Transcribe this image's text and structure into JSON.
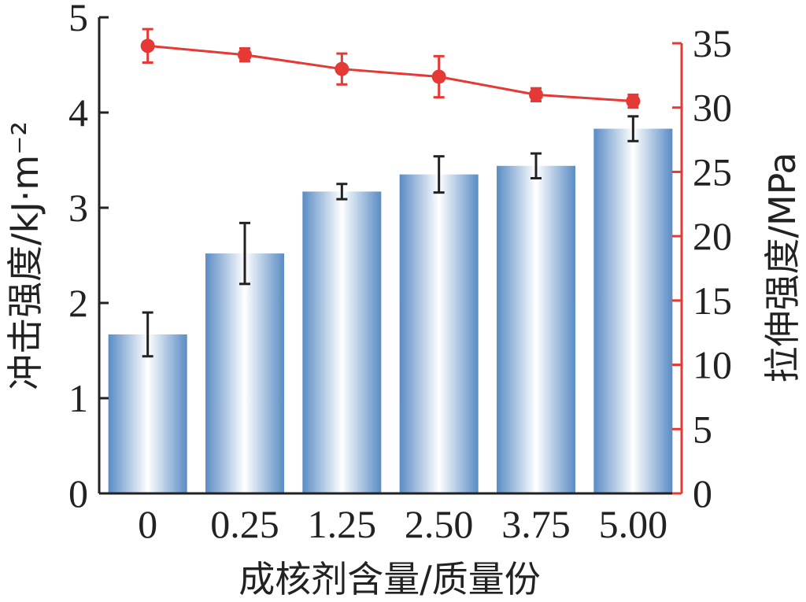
{
  "chart_data": {
    "type": "bar",
    "categories": [
      "0",
      "0.25",
      "1.25",
      "2.50",
      "3.75",
      "5.00"
    ],
    "xlabel": "成核剂含量/质量份",
    "ylabel_left": "冲击强度/kJ·m⁻²",
    "ylabel_right": "拉伸强度/MPa",
    "ylim_left": [
      0,
      5
    ],
    "ylim_right": [
      0,
      35
    ],
    "yticks_left": [
      "0",
      "1",
      "2",
      "3",
      "4",
      "5"
    ],
    "yticks_right": [
      "0",
      "5",
      "10",
      "15",
      "20",
      "25",
      "30",
      "35"
    ],
    "series": [
      {
        "kind": "bar",
        "axis": "left",
        "values": [
          1.67,
          2.52,
          3.17,
          3.35,
          3.44,
          3.83
        ],
        "errors": [
          0.23,
          0.32,
          0.08,
          0.19,
          0.13,
          0.13
        ],
        "color": "#5a8cc4"
      },
      {
        "kind": "line",
        "axis": "right",
        "values": [
          34.8,
          34.1,
          33.0,
          32.4,
          31.0,
          30.5
        ],
        "errors": [
          1.3,
          0.5,
          1.2,
          1.6,
          0.5,
          0.5
        ],
        "color": "#e53935"
      }
    ],
    "grid": false
  }
}
